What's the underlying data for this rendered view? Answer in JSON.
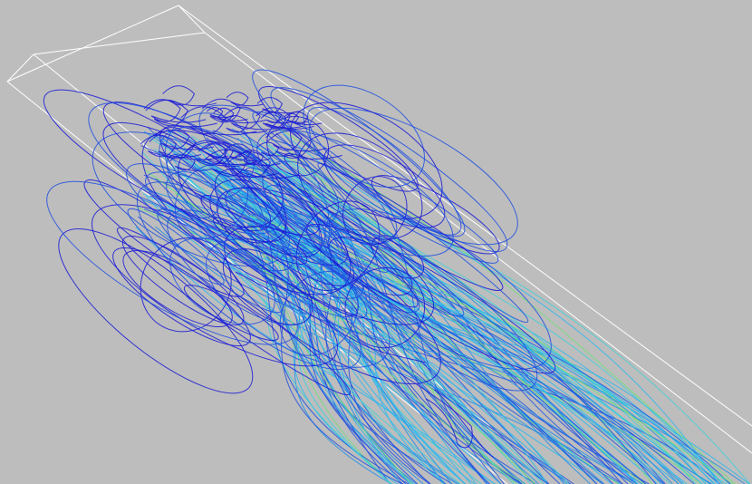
{
  "viewport": {
    "background": "#bdbdbd",
    "bounding_box_color": "#ffffff",
    "colormap": [
      "#1a1ad6",
      "#1f4fe0",
      "#1f8ee8",
      "#2ab8ee",
      "#3ed0d8",
      "#6ee07a"
    ]
  }
}
